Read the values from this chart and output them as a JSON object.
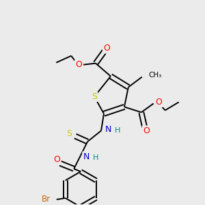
{
  "bg_color": "#ebebeb",
  "atom_colors": {
    "S": "#cccc00",
    "O": "#ff0000",
    "N": "#0000cc",
    "Br": "#cc6600",
    "C": "#000000",
    "H": "#008888"
  },
  "bond_color": "#000000"
}
